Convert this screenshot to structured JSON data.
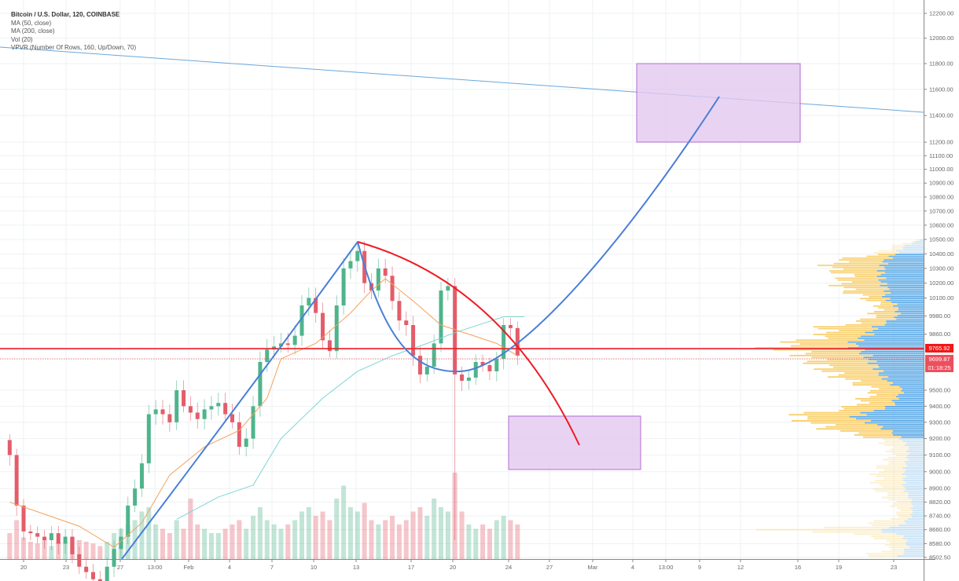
{
  "legend": {
    "title": "Bitcoin / U.S. Dollar, 120, COINBASE",
    "ma50": "MA (50, close)",
    "ma200": "MA (200, close)",
    "vol": "Vol (20)",
    "vpvr": "VPVR (Number Of Rows, 160, Up/Down, 70)"
  },
  "price_tags": {
    "last_price": "9765.92",
    "current_price": "9699.87",
    "countdown": "01:18:25"
  },
  "colors": {
    "up": "#4fb48c",
    "down": "#e35d6a",
    "ma50": "#f5a25d",
    "ma200": "#7fd6d3",
    "vp_up": "#5aa9e6",
    "vp_down": "#f9cf6a",
    "drawing_blue": "#4a7fd6",
    "drawing_red": "#ee1c25",
    "zone": "#e3c8ef"
  },
  "chart_data": {
    "type": "candlestick",
    "symbol": "Bitcoin / U.S. Dollar",
    "interval": "120",
    "exchange": "COINBASE",
    "y_scale": "log",
    "ylim": [
      8502.5,
      12200
    ],
    "grid": true,
    "y_ticks": [
      "12200.00",
      "12000.00",
      "11800.00",
      "11600.00",
      "11400.00",
      "11200.00",
      "11100.00",
      "11000.00",
      "10900.00",
      "10800.00",
      "10700.00",
      "10600.00",
      "10500.00",
      "10400.00",
      "10300.00",
      "10200.00",
      "10100.00",
      "9980.00",
      "9860.00",
      "9500.00",
      "9400.00",
      "9300.00",
      "9200.00",
      "9100.00",
      "9000.00",
      "8900.00",
      "8820.00",
      "8740.00",
      "8660.00",
      "8580.00",
      "8502.50"
    ],
    "x_ticks": [
      "20",
      "23",
      "27",
      "13:00",
      "Feb",
      "4",
      "7",
      "10",
      "13",
      "17",
      "20",
      "24",
      "27",
      "Mar",
      "4",
      "13:00",
      "9",
      "12",
      "16",
      "19",
      "23"
    ],
    "closes": [
      [
        "Jan 19 00:00",
        9100
      ],
      [
        "Jan 19 12:00",
        8800
      ],
      [
        "Jan 20 00:00",
        8650
      ],
      [
        "Jan 20 12:00",
        8640
      ],
      [
        "Jan 21 00:00",
        8620
      ],
      [
        "Jan 21 12:00",
        8600
      ],
      [
        "Jan 22 00:00",
        8640
      ],
      [
        "Jan 22 12:00",
        8580
      ],
      [
        "Jan 23 00:00",
        8620
      ],
      [
        "Jan 23 12:00",
        8520
      ],
      [
        "Jan 24 00:00",
        8450
      ],
      [
        "Jan 24 12:00",
        8420
      ],
      [
        "Jan 25 00:00",
        8380
      ],
      [
        "Jan 25 12:00",
        8350
      ],
      [
        "Jan 26 00:00",
        8450
      ],
      [
        "Jan 26 12:00",
        8550
      ],
      [
        "Jan 27 00:00",
        8620
      ],
      [
        "Jan 27 12:00",
        8800
      ],
      [
        "Jan 28 00:00",
        8900
      ],
      [
        "Jan 28 12:00",
        9050
      ],
      [
        "Jan 29 00:00",
        9350
      ],
      [
        "Jan 29 12:00",
        9380
      ],
      [
        "Jan 30 00:00",
        9350
      ],
      [
        "Jan 30 12:00",
        9300
      ],
      [
        "Jan 31 00:00",
        9500
      ],
      [
        "Jan 31 12:00",
        9400
      ],
      [
        "Feb 1 00:00",
        9360
      ],
      [
        "Feb 1 12:00",
        9320
      ],
      [
        "Feb 2 00:00",
        9380
      ],
      [
        "Feb 2 12:00",
        9400
      ],
      [
        "Feb 3 00:00",
        9420
      ],
      [
        "Feb 3 12:00",
        9350
      ],
      [
        "Feb 4 00:00",
        9300
      ],
      [
        "Feb 4 12:00",
        9150
      ],
      [
        "Feb 5 00:00",
        9200
      ],
      [
        "Feb 5 12:00",
        9400
      ],
      [
        "Feb 6 00:00",
        9680
      ],
      [
        "Feb 6 12:00",
        9760
      ],
      [
        "Feb 7 00:00",
        9780
      ],
      [
        "Feb 7 12:00",
        9800
      ],
      [
        "Feb 8 00:00",
        9790
      ],
      [
        "Feb 8 12:00",
        9850
      ],
      [
        "Feb 9 00:00",
        10050
      ],
      [
        "Feb 9 12:00",
        10100
      ],
      [
        "Feb 10 00:00",
        10000
      ],
      [
        "Feb 10 12:00",
        9820
      ],
      [
        "Feb 11 00:00",
        9750
      ],
      [
        "Feb 11 12:00",
        10050
      ],
      [
        "Feb 12 00:00",
        10300
      ],
      [
        "Feb 12 12:00",
        10350
      ],
      [
        "Feb 13 00:00",
        10420
      ],
      [
        "Feb 13 12:00",
        10200
      ],
      [
        "Feb 14 00:00",
        10150
      ],
      [
        "Feb 14 12:00",
        10300
      ],
      [
        "Feb 15 00:00",
        10250
      ],
      [
        "Feb 15 12:00",
        10080
      ],
      [
        "Feb 16 00:00",
        9950
      ],
      [
        "Feb 16 12:00",
        9920
      ],
      [
        "Feb 17 00:00",
        9720
      ],
      [
        "Feb 17 12:00",
        9600
      ],
      [
        "Feb 18 00:00",
        9650
      ],
      [
        "Feb 18 12:00",
        9800
      ],
      [
        "Feb 19 00:00",
        10150
      ],
      [
        "Feb 19 12:00",
        10180
      ],
      [
        "Feb 20 00:00",
        9600
      ],
      [
        "Feb 20 12:00",
        9560
      ],
      [
        "Feb 21 00:00",
        9580
      ],
      [
        "Feb 21 12:00",
        9680
      ],
      [
        "Feb 22 00:00",
        9660
      ],
      [
        "Feb 22 12:00",
        9620
      ],
      [
        "Feb 23 00:00",
        9700
      ],
      [
        "Feb 23 12:00",
        9920
      ],
      [
        "Feb 24 00:00",
        9900
      ],
      [
        "Feb 24 12:00",
        9720
      ]
    ],
    "volume_relative": [
      30,
      45,
      25,
      20,
      18,
      22,
      15,
      20,
      18,
      25,
      22,
      20,
      18,
      15,
      20,
      30,
      35,
      40,
      45,
      55,
      60,
      40,
      35,
      30,
      45,
      35,
      70,
      40,
      35,
      30,
      30,
      35,
      40,
      45,
      35,
      50,
      60,
      45,
      40,
      35,
      40,
      45,
      55,
      60,
      50,
      55,
      45,
      70,
      85,
      60,
      55,
      65,
      45,
      40,
      45,
      50,
      40,
      45,
      55,
      60,
      50,
      70,
      60,
      55,
      100,
      55,
      40,
      35,
      40,
      35,
      45,
      50,
      45,
      40
    ],
    "ma50": [
      [
        "Jan 19 00:00",
        8820
      ],
      [
        "Jan 21 12:00",
        8750
      ],
      [
        "Jan 24 00:00",
        8680
      ],
      [
        "Jan 26 12:00",
        8560
      ],
      [
        "Jan 28 12:00",
        8700
      ],
      [
        "Jan 30 12:00",
        8980
      ],
      [
        "Feb 2 00:00",
        9150
      ],
      [
        "Feb 4 12:00",
        9250
      ],
      [
        "Feb 6 12:00",
        9450
      ],
      [
        "Feb 7 12:00",
        9700
      ],
      [
        "Feb 10 00:00",
        9800
      ],
      [
        "Feb 12 12:00",
        10000
      ],
      [
        "Feb 14 00:00",
        10150
      ],
      [
        "Feb 15 00:00",
        10230
      ],
      [
        "Feb 17 00:00",
        10080
      ],
      [
        "Feb 19 00:00",
        9920
      ],
      [
        "Feb 21 00:00",
        9860
      ],
      [
        "Feb 23 00:00",
        9800
      ],
      [
        "Feb 24 12:00",
        9720
      ]
    ],
    "ma200": [
      [
        "Jan 31 00:00",
        8720
      ],
      [
        "Feb 3 00:00",
        8850
      ],
      [
        "Feb 5 12:00",
        8920
      ],
      [
        "Feb 7 12:00",
        9200
      ],
      [
        "Feb 10 12:00",
        9450
      ],
      [
        "Feb 13 00:00",
        9620
      ],
      [
        "Feb 15 12:00",
        9720
      ],
      [
        "Feb 18 00:00",
        9800
      ],
      [
        "Feb 20 00:00",
        9870
      ],
      [
        "Feb 22 00:00",
        9930
      ],
      [
        "Feb 23 12:00",
        9975
      ],
      [
        "Feb 25 00:00",
        9975
      ]
    ],
    "volume_profile": {
      "rows": 160,
      "levels": [
        [
          10500,
          5,
          2
        ],
        [
          10450,
          40,
          25
        ],
        [
          10400,
          60,
          35
        ],
        [
          10350,
          110,
          50
        ],
        [
          10300,
          122,
          52
        ],
        [
          10250,
          95,
          55
        ],
        [
          10200,
          108,
          53
        ],
        [
          10150,
          100,
          45
        ],
        [
          10100,
          75,
          50
        ],
        [
          10050,
          55,
          35
        ],
        [
          9980,
          65,
          32
        ],
        [
          9940,
          80,
          45
        ],
        [
          9900,
          132,
          62
        ],
        [
          9860,
          120,
          70
        ],
        [
          9820,
          150,
          85
        ],
        [
          9790,
          182,
          90
        ],
        [
          9765,
          191,
          85
        ],
        [
          9730,
          150,
          75
        ],
        [
          9700,
          145,
          70
        ],
        [
          9650,
          130,
          60
        ],
        [
          9600,
          115,
          55
        ],
        [
          9550,
          90,
          45
        ],
        [
          9500,
          60,
          25
        ],
        [
          9450,
          75,
          35
        ],
        [
          9400,
          85,
          40
        ],
        [
          9350,
          150,
          80
        ],
        [
          9330,
          170,
          90
        ],
        [
          9300,
          140,
          70
        ],
        [
          9250,
          115,
          45
        ],
        [
          9200,
          60,
          30
        ],
        [
          9150,
          45,
          20
        ],
        [
          9100,
          40,
          20
        ],
        [
          9000,
          60,
          25
        ],
        [
          8900,
          60,
          25
        ],
        [
          8820,
          40,
          15
        ],
        [
          8740,
          30,
          15
        ],
        [
          8680,
          80,
          30
        ],
        [
          8660,
          190,
          60
        ],
        [
          8620,
          60,
          25
        ],
        [
          8560,
          40,
          20
        ],
        [
          8510,
          70,
          30
        ]
      ],
      "value_area": [
        9200,
        10400
      ]
    },
    "horizontal_lines": [
      9765.92,
      9699.87
    ]
  }
}
